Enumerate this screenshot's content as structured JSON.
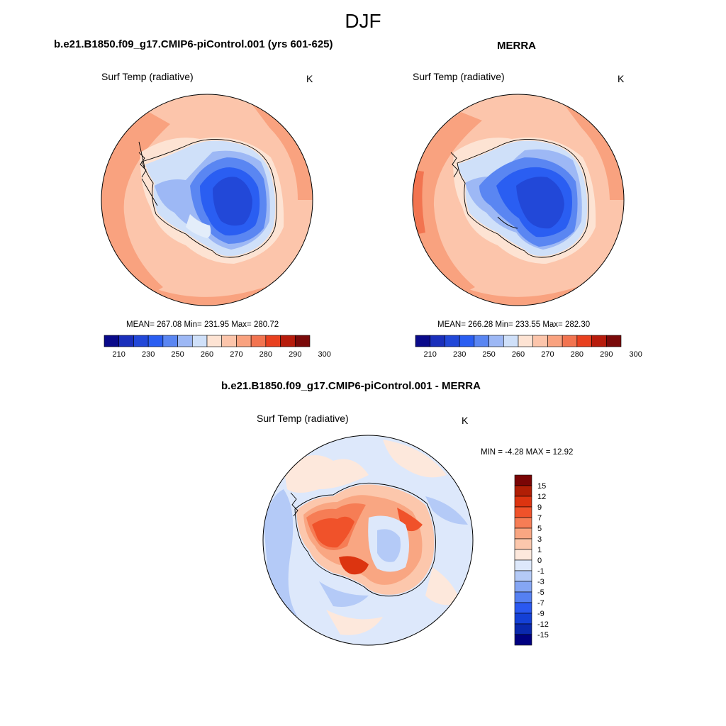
{
  "figure": {
    "season": "DJF",
    "colors": {
      "abs_scale": [
        "#0a0a8a",
        "#1a2fbb",
        "#2248d8",
        "#2a5ef2",
        "#5a86f2",
        "#9db8f5",
        "#cfe0f9",
        "#fde3d3",
        "#fcc5ab",
        "#f9a27f",
        "#f27450",
        "#e8401f",
        "#b71c0c",
        "#7a0a0a"
      ],
      "diff_scale": [
        "#000080",
        "#0a28ad",
        "#1440d6",
        "#2a58f0",
        "#5580f2",
        "#85a6f4",
        "#b4caf7",
        "#dde8fb",
        "#fde8dc",
        "#fcc7ac",
        "#f9a682",
        "#f67d55",
        "#f0522a",
        "#dc3410",
        "#b01e05",
        "#7a0505"
      ]
    }
  },
  "panels": [
    {
      "title": "b.e21.B1850.f09_g17.CMIP6-piControl.001 (yrs 601-625)",
      "variable": "Surf Temp (radiative)",
      "units": "K",
      "stats": "MEAN= 267.08  Min= 231.95  Max= 280.72",
      "colorbar_ticks": [
        "210",
        "230",
        "250",
        "260",
        "270",
        "280",
        "290",
        "300"
      ]
    },
    {
      "title": "MERRA",
      "variable": "Surf Temp (radiative)",
      "units": "K",
      "stats": "MEAN= 266.28  Min= 233.55  Max= 282.30",
      "colorbar_ticks": [
        "210",
        "230",
        "250",
        "260",
        "270",
        "280",
        "290",
        "300"
      ]
    },
    {
      "title": "b.e21.B1850.f09_g17.CMIP6-piControl.001 - MERRA",
      "variable": "Surf Temp (radiative)",
      "units": "K",
      "stats": "MIN =  -4.28 MAX =  12.92",
      "colorbar_ticks": [
        "15",
        "12",
        "9",
        "7",
        "5",
        "3",
        "1",
        "0",
        "-1",
        "-3",
        "-5",
        "-7",
        "-9",
        "-12",
        "-15"
      ]
    }
  ]
}
